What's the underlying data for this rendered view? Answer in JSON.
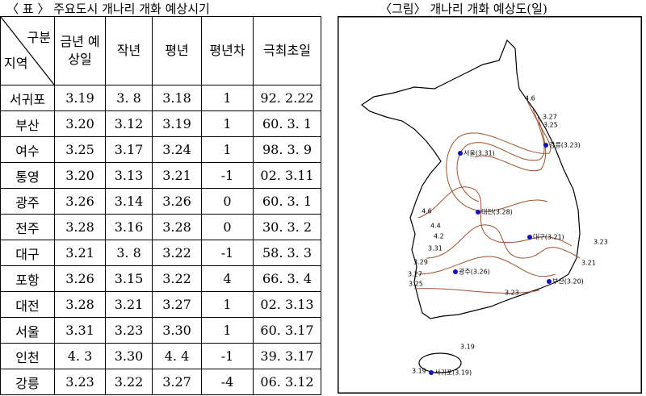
{
  "table": {
    "title": "〈 표 〉 주요도시 개나리 개화 예상시기",
    "header": {
      "corner_top": "구분",
      "corner_bottom": "지역",
      "columns": [
        "금년 예상일",
        "작년",
        "평년",
        "평년차",
        "극최초일"
      ]
    },
    "rows": [
      [
        "서귀포",
        "3.19",
        "3. 8",
        "3.18",
        "1",
        "92. 2.22"
      ],
      [
        "부산",
        "3.20",
        "3.12",
        "3.19",
        "1",
        "60. 3. 1"
      ],
      [
        "여수",
        "3.25",
        "3.17",
        "3.24",
        "1",
        "98. 3. 9"
      ],
      [
        "통영",
        "3.20",
        "3.13",
        "3.21",
        "-1",
        "02. 3.11"
      ],
      [
        "광주",
        "3.26",
        "3.14",
        "3.26",
        "0",
        "60. 3. 1"
      ],
      [
        "전주",
        "3.28",
        "3.16",
        "3.28",
        "0",
        "30. 3. 2"
      ],
      [
        "대구",
        "3.21",
        "3. 8",
        "3.22",
        "-1",
        "58. 3. 3"
      ],
      [
        "포항",
        "3.26",
        "3.15",
        "3.22",
        "4",
        "66. 3. 4"
      ],
      [
        "대전",
        "3.28",
        "3.21",
        "3.27",
        "1",
        "02. 3.13"
      ],
      [
        "서울",
        "3.31",
        "3.23",
        "3.30",
        "1",
        "60. 3.17"
      ],
      [
        "인천",
        "4. 3",
        "3.30",
        "4. 4",
        "-1",
        "39. 3.17"
      ],
      [
        "강릉",
        "3.23",
        "3.22",
        "3.27",
        "-4",
        "06. 3.12"
      ]
    ]
  },
  "map": {
    "title": "〈그림〉 개나리 개화 예상도(일)",
    "cities": [
      "강릉(3.23)",
      "서울(3.31)",
      "대전(3.28)",
      "대구(3.21)",
      "광주(3.26)",
      "부산(3.20)",
      "서귀포(3.19)"
    ],
    "contour_labels": [
      "4.6",
      "3.27",
      "3.25",
      "4.6",
      "4.4",
      "4.2",
      "3.31",
      "3.23",
      "3.21",
      "3.29",
      "3.27",
      "3.25",
      "3.23",
      "3.19",
      "3.19"
    ]
  }
}
